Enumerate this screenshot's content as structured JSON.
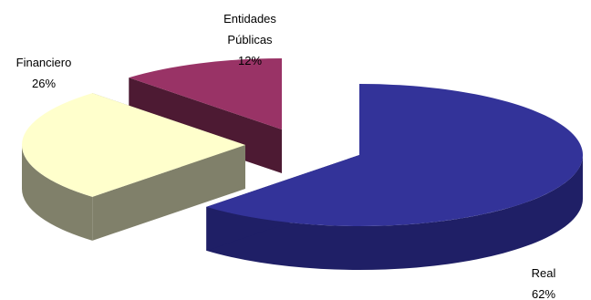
{
  "chart_data": {
    "type": "pie",
    "style": "3d-exploded",
    "title": "",
    "legend": "none",
    "slices": [
      {
        "name": "Real",
        "value": 62,
        "label_lines": [
          "Real",
          "62%"
        ],
        "color": "#333399",
        "side_color": "#1f1f66"
      },
      {
        "name": "Financiero",
        "value": 26,
        "label_lines": [
          "Financiero",
          "26%"
        ],
        "color": "#ffffcc",
        "side_color": "#80806a"
      },
      {
        "name": "Entidades Públicas",
        "value": 12,
        "label_lines": [
          "Entidades",
          "Públicas",
          "12%"
        ],
        "color": "#993366",
        "side_color": "#4d1a33"
      }
    ]
  }
}
